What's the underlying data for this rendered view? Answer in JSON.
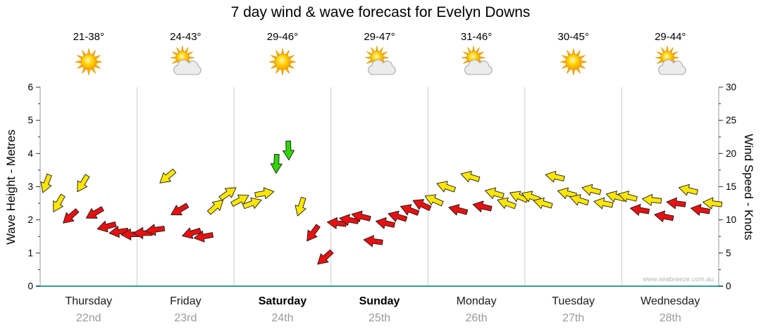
{
  "title": "7 day wind & wave forecast for Evelyn Downs",
  "watermark": "www.seabreeze.com.au",
  "axes": {
    "left": {
      "label": "Wave Height - Metres",
      "ticks": [
        0,
        1,
        2,
        3,
        4,
        5,
        6
      ],
      "max": 6
    },
    "right": {
      "label": "Wind Speed - Knots",
      "ticks": [
        0,
        5,
        10,
        15,
        20,
        25,
        30
      ],
      "max": 30
    }
  },
  "days": [
    {
      "name": "Thursday",
      "date": "22nd",
      "temp": "21-38°",
      "icon": "sunny",
      "bold": false
    },
    {
      "name": "Friday",
      "date": "23rd",
      "temp": "24-43°",
      "icon": "partly-cloudy",
      "bold": false
    },
    {
      "name": "Saturday",
      "date": "24th",
      "temp": "29-46°",
      "icon": "sunny",
      "bold": true
    },
    {
      "name": "Sunday",
      "date": "25th",
      "temp": "29-47°",
      "icon": "partly-cloudy",
      "bold": true
    },
    {
      "name": "Monday",
      "date": "26th",
      "temp": "31-46°",
      "icon": "partly-cloudy",
      "bold": false
    },
    {
      "name": "Tuesday",
      "date": "27th",
      "temp": "30-45°",
      "icon": "sunny",
      "bold": false
    },
    {
      "name": "Wednesday",
      "date": "28th",
      "temp": "29-44°",
      "icon": "partly-cloudy",
      "bold": false
    }
  ],
  "colors": {
    "yellow": "#ffe600",
    "red": "#e81010",
    "green": "#2fd500",
    "arrow_outline": "#1a1a1a",
    "axis_line": "#999999",
    "day_separator": "#cccccc",
    "baseline_teal": "#2f9c9c",
    "tick": "#333333"
  },
  "chart_data": {
    "type": "scatter",
    "subtype": "wind-direction-arrows",
    "title": "7 day wind & wave forecast for Evelyn Downs",
    "y_left_label": "Wave Height - Metres",
    "y_left_range": [
      0,
      6
    ],
    "y_right_label": "Wind Speed - Knots",
    "y_right_range": [
      0,
      30
    ],
    "x_categories": [
      "Thursday 22nd",
      "Friday 23rd",
      "Saturday 24th",
      "Sunday 25th",
      "Monday 26th",
      "Tuesday 27th",
      "Wednesday 28th"
    ],
    "points_per_day": 8,
    "point_format": [
      "wind_speed_knots",
      "arrow_color",
      "direction_deg_clockwise_from_east"
    ],
    "arrows_by_day": [
      {
        "day": "Thursday",
        "points": [
          [
            15.5,
            "yellow",
            110
          ],
          [
            12.5,
            "yellow",
            120
          ],
          [
            10.5,
            "red",
            138
          ],
          [
            15.5,
            "yellow",
            122
          ],
          [
            11,
            "red",
            150
          ],
          [
            9,
            "red",
            165
          ],
          [
            8.2,
            "red",
            172
          ],
          [
            7.8,
            "red",
            178
          ]
        ]
      },
      {
        "day": "Friday",
        "points": [
          [
            8,
            "red",
            180
          ],
          [
            8.5,
            "red",
            172
          ],
          [
            16.5,
            "yellow",
            140
          ],
          [
            11.5,
            "red",
            150
          ],
          [
            8,
            "red",
            163
          ],
          [
            7.5,
            "red",
            170
          ],
          [
            12,
            "yellow",
            318
          ],
          [
            14,
            "yellow",
            325
          ]
        ]
      },
      {
        "day": "Saturday",
        "points": [
          [
            13,
            "yellow",
            332
          ],
          [
            12.5,
            "yellow",
            340
          ],
          [
            14,
            "yellow",
            350
          ],
          [
            18.5,
            "green",
            92
          ],
          [
            20.5,
            "green",
            88
          ],
          [
            12,
            "yellow",
            108
          ],
          [
            8,
            "red",
            126
          ],
          [
            4.3,
            "red",
            138
          ]
        ]
      },
      {
        "day": "Sunday",
        "points": [
          [
            9.5,
            "red",
            186
          ],
          [
            10,
            "red",
            190
          ],
          [
            10.5,
            "red",
            194
          ],
          [
            6.8,
            "red",
            188
          ],
          [
            9.5,
            "red",
            192
          ],
          [
            10.5,
            "red",
            197
          ],
          [
            11.5,
            "red",
            201
          ],
          [
            12.3,
            "red",
            205
          ]
        ]
      },
      {
        "day": "Monday",
        "points": [
          [
            13,
            "yellow",
            204
          ],
          [
            15,
            "yellow",
            199
          ],
          [
            11.5,
            "red",
            195
          ],
          [
            16.5,
            "yellow",
            197
          ],
          [
            12,
            "red",
            193
          ],
          [
            14,
            "yellow",
            196
          ],
          [
            12.5,
            "yellow",
            200
          ],
          [
            13.5,
            "yellow",
            203
          ]
        ]
      },
      {
        "day": "Tuesday",
        "points": [
          [
            13.5,
            "yellow",
            200
          ],
          [
            12.5,
            "yellow",
            196
          ],
          [
            16.5,
            "yellow",
            192
          ],
          [
            14,
            "yellow",
            195
          ],
          [
            13,
            "yellow",
            198
          ],
          [
            14.5,
            "yellow",
            194
          ],
          [
            12.5,
            "yellow",
            191
          ],
          [
            13.5,
            "yellow",
            195
          ]
        ]
      },
      {
        "day": "Wednesday",
        "points": [
          [
            13.5,
            "yellow",
            195
          ],
          [
            11.5,
            "red",
            190
          ],
          [
            13,
            "yellow",
            186
          ],
          [
            10.5,
            "red",
            191
          ],
          [
            12.5,
            "red",
            188
          ],
          [
            14.5,
            "yellow",
            194
          ],
          [
            11.5,
            "red",
            190
          ],
          [
            12.5,
            "yellow",
            187
          ]
        ]
      }
    ]
  }
}
